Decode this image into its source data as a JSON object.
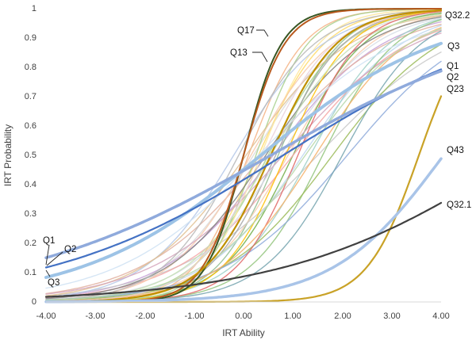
{
  "chart_data": {
    "type": "line",
    "xlabel": "IRT Ability",
    "ylabel": "IRT Probability",
    "xlim": [
      -4,
      4
    ],
    "ylim": [
      0,
      1
    ],
    "x_ticks": [
      "-4.00",
      "-3.00",
      "-2.00",
      "-1.00",
      "0.00",
      "1.00",
      "2.00",
      "3.00",
      "4.00"
    ],
    "y_ticks": [
      "0",
      "0.1",
      "0.2",
      "0.3",
      "0.4",
      "0.5",
      "0.6",
      "0.7",
      "0.8",
      "0.9",
      "1"
    ],
    "grid": false,
    "legend": "none",
    "labeled_series": [
      {
        "name": "Q17",
        "a": 2.6,
        "b": 0.0,
        "color": "#375623",
        "width": 2
      },
      {
        "name": "Q13",
        "a": 2.4,
        "b": 0.0,
        "color": "#b85a1e",
        "width": 2
      },
      {
        "name": "Q32.2",
        "a": 1.5,
        "b": 0.55,
        "color": "#bf9000",
        "width": 2.2
      },
      {
        "name": "Q3",
        "a": 0.55,
        "b": 0.35,
        "color": "#9dc3e6",
        "width": 4
      },
      {
        "name": "Q1",
        "a": 0.42,
        "b": 0.8,
        "color": "#4472c4",
        "width": 2.2
      },
      {
        "name": "Q2",
        "a": 0.38,
        "b": 0.55,
        "color": "#8faadc",
        "width": 3.5
      },
      {
        "name": "Q23",
        "a": 1.9,
        "b": 3.55,
        "color": "#c9a227",
        "width": 2.2
      },
      {
        "name": "Q43",
        "a": 0.9,
        "b": 4.05,
        "color": "#a9c4e8",
        "width": 3.5
      },
      {
        "name": "Q32.1",
        "a": 0.42,
        "b": 5.6,
        "color": "#404040",
        "width": 2.2
      }
    ],
    "background_series": [
      {
        "a": 1.8,
        "b": 0.1,
        "color": "#f4b183"
      },
      {
        "a": 1.5,
        "b": 0.3,
        "color": "#ffd966"
      },
      {
        "a": 1.3,
        "b": 0.5,
        "color": "#a9d18e"
      },
      {
        "a": 1.1,
        "b": 0.2,
        "color": "#d9d9d9"
      },
      {
        "a": 0.9,
        "b": 0.6,
        "color": "#c5a0d6"
      },
      {
        "a": 1.6,
        "b": 0.7,
        "color": "#8fbc8f"
      },
      {
        "a": 1.2,
        "b": 0.9,
        "color": "#f8cbad"
      },
      {
        "a": 1.0,
        "b": 1.2,
        "color": "#bdd7ee"
      },
      {
        "a": 0.8,
        "b": 0.4,
        "color": "#e2b0a0"
      },
      {
        "a": 1.4,
        "b": 1.0,
        "color": "#70ad47"
      },
      {
        "a": 0.7,
        "b": 1.5,
        "color": "#c9c9c9"
      },
      {
        "a": 1.7,
        "b": 0.35,
        "color": "#ffe699"
      },
      {
        "a": 1.1,
        "b": -0.2,
        "color": "#b4c7e7"
      },
      {
        "a": 0.95,
        "b": 0.05,
        "color": "#e0c090"
      },
      {
        "a": 1.25,
        "b": 1.35,
        "color": "#9fd0c8"
      },
      {
        "a": 0.85,
        "b": 1.0,
        "color": "#f4a6a6"
      },
      {
        "a": 1.45,
        "b": 0.65,
        "color": "#a5a5a5"
      },
      {
        "a": 1.05,
        "b": 0.75,
        "color": "#d6dce5"
      },
      {
        "a": 1.9,
        "b": 0.25,
        "color": "#a8d08d"
      },
      {
        "a": 1.2,
        "b": 0.15,
        "color": "#f7caac"
      },
      {
        "a": 0.75,
        "b": 0.8,
        "color": "#d5a6bd"
      },
      {
        "a": 1.35,
        "b": 1.6,
        "color": "#93c47d"
      },
      {
        "a": 1.0,
        "b": 0.45,
        "color": "#7f7f7f"
      },
      {
        "a": 1.55,
        "b": 0.85,
        "color": "#ffc000"
      },
      {
        "a": 0.9,
        "b": 1.8,
        "color": "#9bbb59"
      },
      {
        "a": 1.15,
        "b": 0.55,
        "color": "#c6e0b4"
      },
      {
        "a": 1.3,
        "b": -0.1,
        "color": "#b7b7b7"
      },
      {
        "a": 0.8,
        "b": 2.1,
        "color": "#8eaadb"
      },
      {
        "a": 1.6,
        "b": 1.1,
        "color": "#e06666"
      },
      {
        "a": 1.05,
        "b": 1.45,
        "color": "#f6b26b"
      },
      {
        "a": 0.7,
        "b": 0.3,
        "color": "#cfe2f3"
      },
      {
        "a": 1.4,
        "b": 0.4,
        "color": "#ead1dc"
      },
      {
        "a": 1.25,
        "b": 2.0,
        "color": "#76a5af"
      },
      {
        "a": 0.95,
        "b": 1.25,
        "color": "#b6d7a8"
      }
    ]
  }
}
